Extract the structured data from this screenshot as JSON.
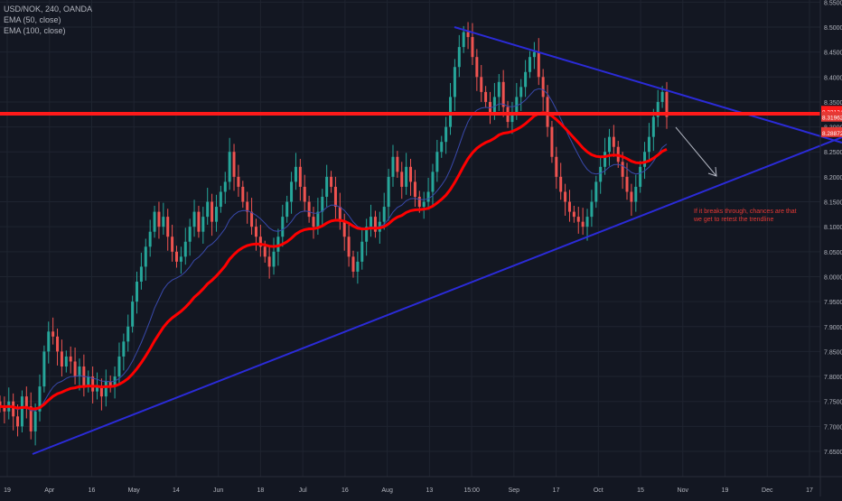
{
  "legend": {
    "symbol_line": "USD/NOK, 240, OANDA",
    "ema50": "EMA (50, close)",
    "ema100": "EMA (100, close)"
  },
  "annotation": {
    "line1": "If it breaks through, chances are that",
    "line2": "we get to retest the trendline"
  },
  "colors": {
    "background": "#131722",
    "grid": "#1f2430",
    "up_candle": "#26a69a",
    "down_candle": "#ef5350",
    "ema50": "#3949ab",
    "ema100": "#ff0000",
    "trendline": "#2b2bd8",
    "resistance": "#ff1a1a",
    "arrow": "#b0b4c0",
    "annotation_text": "#e53935"
  },
  "chart_data": {
    "type": "candlestick",
    "symbol": "USD/NOK",
    "timeframe": "240",
    "source": "OANDA",
    "y_axis": {
      "range": [
        7.63,
        8.55
      ],
      "ticks": [
        "8.55000",
        "8.50000",
        "8.45000",
        "8.40000",
        "8.35000",
        "8.30000",
        "8.25000",
        "8.20000",
        "8.15000",
        "8.10000",
        "8.05000",
        "8.00000",
        "7.95000",
        "7.90000",
        "7.85000",
        "7.80000",
        "7.75000",
        "7.70000",
        "7.65000"
      ]
    },
    "x_axis": {
      "tick_labels": [
        "19",
        "Apr",
        "16",
        "May",
        "14",
        "Jun",
        "18",
        "Jul",
        "16",
        "Aug",
        "13",
        "15:00",
        "Sep",
        "17",
        "Oct",
        "15",
        "Nov",
        "19",
        "Dec",
        "17"
      ]
    },
    "price_labels": [
      {
        "value": 8.33134,
        "text": "8.33134",
        "color": "#ff1a1a"
      },
      {
        "value": 8.31962,
        "text": "8.31962",
        "color": "#e53935"
      },
      {
        "value": 8.28872,
        "text": "8.28872",
        "color": "#e53935"
      }
    ],
    "close_series": [
      7.74,
      7.73,
      7.75,
      7.72,
      7.7,
      7.76,
      7.74,
      7.69,
      7.73,
      7.78,
      7.85,
      7.89,
      7.88,
      7.85,
      7.82,
      7.84,
      7.83,
      7.8,
      7.82,
      7.78,
      7.8,
      7.77,
      7.78,
      7.76,
      7.79,
      7.78,
      7.8,
      7.84,
      7.87,
      7.9,
      7.95,
      7.99,
      8.02,
      8.06,
      8.09,
      8.13,
      8.1,
      8.12,
      8.08,
      8.05,
      8.03,
      8.04,
      8.07,
      8.1,
      8.13,
      8.09,
      8.12,
      8.15,
      8.11,
      8.14,
      8.17,
      8.19,
      8.25,
      8.2,
      8.18,
      8.15,
      8.13,
      8.1,
      8.08,
      8.06,
      8.04,
      8.02,
      8.05,
      8.08,
      8.12,
      8.15,
      8.19,
      8.22,
      8.18,
      8.15,
      8.12,
      8.1,
      8.13,
      8.16,
      8.2,
      8.18,
      8.14,
      8.11,
      8.08,
      8.04,
      8.01,
      8.03,
      8.07,
      8.1,
      8.12,
      8.09,
      8.11,
      8.14,
      8.2,
      8.24,
      8.21,
      8.18,
      8.22,
      8.19,
      8.16,
      8.14,
      8.15,
      8.17,
      8.21,
      8.25,
      8.27,
      8.3,
      8.36,
      8.42,
      8.46,
      8.49,
      8.48,
      8.44,
      8.4,
      8.37,
      8.35,
      8.33,
      8.36,
      8.39,
      8.34,
      8.31,
      8.33,
      8.36,
      8.38,
      8.41,
      8.44,
      8.45,
      8.4,
      8.36,
      8.3,
      8.24,
      8.2,
      8.17,
      8.15,
      8.13,
      8.12,
      8.11,
      8.1,
      8.12,
      8.15,
      8.19,
      8.22,
      8.25,
      8.28,
      8.26,
      8.23,
      8.2,
      8.17,
      8.15,
      8.18,
      8.22,
      8.25,
      8.28,
      8.32,
      8.35,
      8.37,
      8.32
    ],
    "ema50_period": 50,
    "ema100_period": 100
  }
}
